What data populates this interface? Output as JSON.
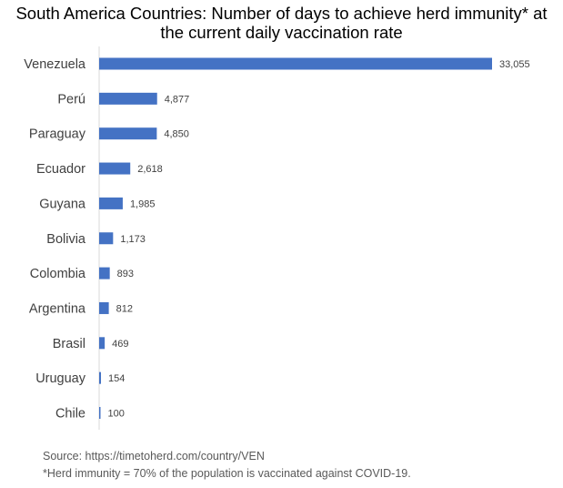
{
  "chart_data": {
    "type": "bar",
    "orientation": "horizontal",
    "title": "South America Countries: Number of days to achieve herd immunity* at\nthe current daily vaccination rate",
    "categories": [
      "Venezuela",
      "Perú",
      "Paraguay",
      "Ecuador",
      "Guyana",
      "Bolivia",
      "Colombia",
      "Argentina",
      "Brasil",
      "Uruguay",
      "Chile"
    ],
    "values": [
      33055,
      4877,
      4850,
      2618,
      1985,
      1173,
      893,
      812,
      469,
      154,
      100
    ],
    "value_labels": [
      "33,055",
      "4,877",
      "4,850",
      "2,618",
      "1,985",
      "1,173",
      "893",
      "812",
      "469",
      "154",
      "100"
    ],
    "xlim": [
      0,
      33055
    ],
    "grid": false,
    "legend": "none",
    "bar_color": "#4472C4",
    "axis_color": "#D9D9D9"
  },
  "footnotes": {
    "source": "Source: https://timetoherd.com/country/VEN",
    "definition": "*Herd immunity = 70% of the population is vaccinated against COVID-19."
  }
}
